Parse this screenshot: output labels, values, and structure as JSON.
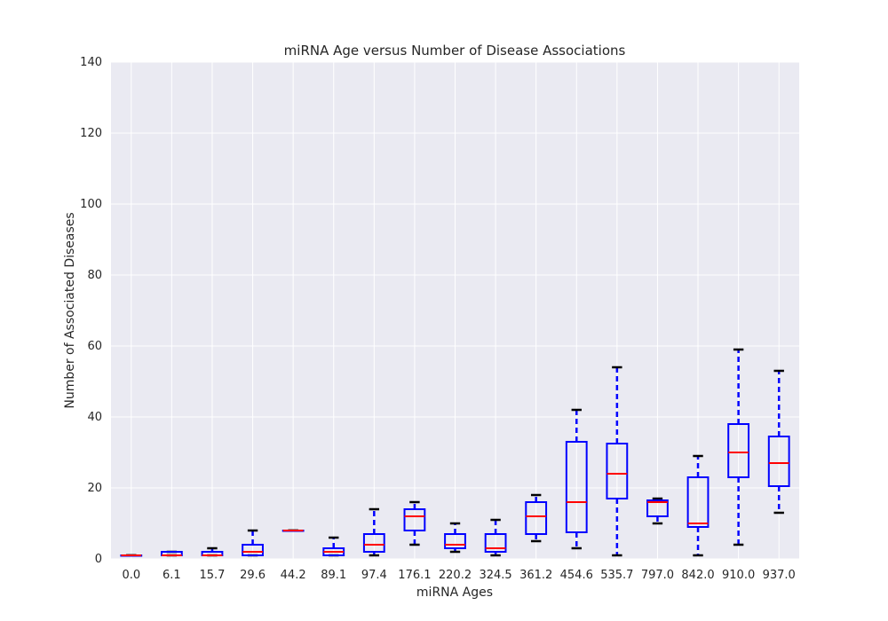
{
  "chart_data": {
    "type": "box",
    "title": "miRNA Age versus Number of Disease Associations",
    "xlabel": "miRNA Ages",
    "ylabel": "Number of Associated Diseases",
    "ylim": [
      0,
      140
    ],
    "yticks": [
      0,
      20,
      40,
      60,
      80,
      100,
      120,
      140
    ],
    "grid": true,
    "colors": {
      "background": "#eaeaf2",
      "grid": "#ffffff",
      "box": "#0000ff",
      "median": "#ff0000",
      "cap": "#000000"
    },
    "categories": [
      "0.0",
      "6.1",
      "15.7",
      "29.6",
      "44.2",
      "89.1",
      "97.4",
      "176.1",
      "220.2",
      "324.5",
      "361.2",
      "454.6",
      "535.7",
      "797.0",
      "842.0",
      "910.0",
      "937.0"
    ],
    "boxes": [
      {
        "whislo": 1,
        "q1": 1,
        "med": 1,
        "q3": 1,
        "whishi": 1
      },
      {
        "whislo": 1,
        "q1": 1,
        "med": 1,
        "q3": 2,
        "whishi": 2
      },
      {
        "whislo": 1,
        "q1": 1,
        "med": 1,
        "q3": 2,
        "whishi": 3
      },
      {
        "whislo": 1,
        "q1": 1,
        "med": 2,
        "q3": 4,
        "whishi": 8
      },
      {
        "whislo": 8,
        "q1": 8,
        "med": 8,
        "q3": 8,
        "whishi": 8
      },
      {
        "whislo": 1,
        "q1": 1,
        "med": 2,
        "q3": 3,
        "whishi": 6
      },
      {
        "whislo": 1,
        "q1": 2,
        "med": 4,
        "q3": 7,
        "whishi": 14
      },
      {
        "whislo": 4,
        "q1": 8,
        "med": 12,
        "q3": 14,
        "whishi": 16
      },
      {
        "whislo": 2,
        "q1": 3,
        "med": 4,
        "q3": 7,
        "whishi": 10
      },
      {
        "whislo": 1,
        "q1": 2,
        "med": 3,
        "q3": 7,
        "whishi": 11
      },
      {
        "whislo": 5,
        "q1": 7,
        "med": 12,
        "q3": 16,
        "whishi": 18
      },
      {
        "whislo": 3,
        "q1": 7.5,
        "med": 16,
        "q3": 33,
        "whishi": 42
      },
      {
        "whislo": 1,
        "q1": 17,
        "med": 24,
        "q3": 32.5,
        "whishi": 54
      },
      {
        "whislo": 10,
        "q1": 12,
        "med": 16,
        "q3": 16.5,
        "whishi": 17
      },
      {
        "whislo": 1,
        "q1": 9,
        "med": 10,
        "q3": 23,
        "whishi": 29
      },
      {
        "whislo": 4,
        "q1": 23,
        "med": 30,
        "q3": 38,
        "whishi": 59
      },
      {
        "whislo": 13,
        "q1": 20.5,
        "med": 27,
        "q3": 34.5,
        "whishi": 53
      }
    ]
  }
}
